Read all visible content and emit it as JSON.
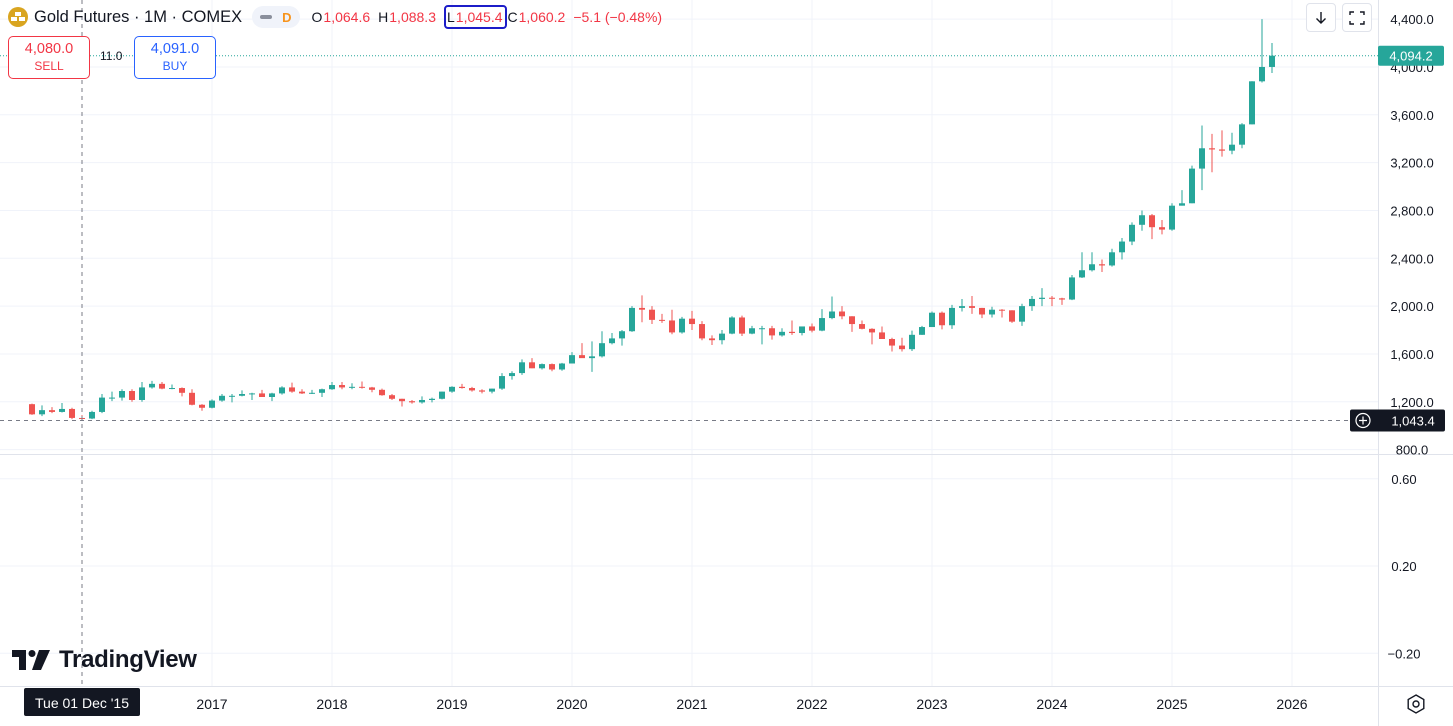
{
  "header": {
    "symbol": "Gold Futures · 1M · COMEX",
    "session_badge": "D",
    "open_key": "O",
    "open_value": "1,064.6",
    "high_key": "H",
    "high_value": "1,088.3",
    "low_key": "L",
    "low_value": "1,045.4",
    "close_key": "C",
    "close_value": "1,060.2",
    "change": "−5.1 (−0.48%)"
  },
  "trade": {
    "sell_price": "4,080.0",
    "sell_label": "SELL",
    "spread": "11.0",
    "buy_price": "4,091.0",
    "buy_label": "BUY"
  },
  "toolbar": {
    "download_icon": "down-arrow-icon",
    "fullscreen_icon": "fullscreen-icon",
    "settings_icon": "settings-icon"
  },
  "brand": {
    "name": "TradingView"
  },
  "colors": {
    "up": "#26a69a",
    "down": "#ef5350",
    "accent": "#2962ff",
    "crosshair": "#131722",
    "last_price_bg": "#26a69a"
  },
  "chart_data": [
    {
      "type": "candlestick",
      "title": "Gold Futures · 1M · COMEX",
      "interval": "1M",
      "ylim": [
        780,
        4560
      ],
      "price_ticks": [
        "800.0",
        "1,200.0",
        "1,600.0",
        "2,000.0",
        "2,400.0",
        "2,800.0",
        "3,200.0",
        "3,600.0",
        "4,000.0",
        "4,400.0"
      ],
      "price_tick_values": [
        800,
        1200,
        1600,
        2000,
        2400,
        2800,
        3200,
        3600,
        4000,
        4400
      ],
      "time_ticks": [
        "2017",
        "2018",
        "2019",
        "2020",
        "2021",
        "2022",
        "2023",
        "2024",
        "2025",
        "2026"
      ],
      "last_price": "4,094.2",
      "crosshair_price": "1,043.4",
      "crosshair_date": "Tue 01 Dec '15",
      "grid": true,
      "candles": [
        [
          "2015-07",
          1180,
          1185,
          1090,
          1095
        ],
        [
          "2015-08",
          1095,
          1170,
          1080,
          1130
        ],
        [
          "2015-09",
          1130,
          1155,
          1105,
          1115
        ],
        [
          "2015-10",
          1115,
          1190,
          1110,
          1140
        ],
        [
          "2015-11",
          1140,
          1150,
          1055,
          1065
        ],
        [
          "2015-12",
          1064.6,
          1088.3,
          1045.4,
          1060.2
        ],
        [
          "2016-01",
          1060,
          1125,
          1055,
          1115
        ],
        [
          "2016-02",
          1115,
          1265,
          1105,
          1235
        ],
        [
          "2016-03",
          1235,
          1285,
          1205,
          1235
        ],
        [
          "2016-04",
          1235,
          1305,
          1210,
          1290
        ],
        [
          "2016-05",
          1290,
          1305,
          1200,
          1215
        ],
        [
          "2016-06",
          1215,
          1365,
          1200,
          1320
        ],
        [
          "2016-07",
          1320,
          1375,
          1310,
          1350
        ],
        [
          "2016-08",
          1350,
          1365,
          1305,
          1310
        ],
        [
          "2016-09",
          1310,
          1345,
          1305,
          1315
        ],
        [
          "2016-10",
          1315,
          1320,
          1245,
          1275
        ],
        [
          "2016-11",
          1275,
          1305,
          1170,
          1175
        ],
        [
          "2016-12",
          1175,
          1180,
          1125,
          1150
        ],
        [
          "2017-01",
          1150,
          1220,
          1145,
          1210
        ],
        [
          "2017-02",
          1210,
          1265,
          1200,
          1250
        ],
        [
          "2017-03",
          1250,
          1265,
          1195,
          1250
        ],
        [
          "2017-04",
          1250,
          1295,
          1245,
          1265
        ],
        [
          "2017-05",
          1265,
          1275,
          1215,
          1270
        ],
        [
          "2017-06",
          1270,
          1300,
          1240,
          1240
        ],
        [
          "2017-07",
          1240,
          1275,
          1205,
          1270
        ],
        [
          "2017-08",
          1270,
          1330,
          1260,
          1320
        ],
        [
          "2017-09",
          1320,
          1360,
          1275,
          1285
        ],
        [
          "2017-10",
          1285,
          1305,
          1265,
          1270
        ],
        [
          "2017-11",
          1270,
          1300,
          1265,
          1275
        ],
        [
          "2017-12",
          1275,
          1310,
          1240,
          1305
        ],
        [
          "2018-01",
          1305,
          1365,
          1300,
          1340
        ],
        [
          "2018-02",
          1340,
          1365,
          1305,
          1320
        ],
        [
          "2018-03",
          1320,
          1355,
          1305,
          1325
        ],
        [
          "2018-04",
          1325,
          1370,
          1310,
          1320
        ],
        [
          "2018-05",
          1320,
          1325,
          1280,
          1300
        ],
        [
          "2018-06",
          1300,
          1310,
          1250,
          1255
        ],
        [
          "2018-07",
          1255,
          1265,
          1215,
          1225
        ],
        [
          "2018-08",
          1225,
          1225,
          1160,
          1205
        ],
        [
          "2018-09",
          1205,
          1215,
          1185,
          1195
        ],
        [
          "2018-10",
          1195,
          1245,
          1185,
          1215
        ],
        [
          "2018-11",
          1215,
          1235,
          1195,
          1225
        ],
        [
          "2018-12",
          1225,
          1285,
          1220,
          1285
        ],
        [
          "2019-01",
          1285,
          1330,
          1275,
          1325
        ],
        [
          "2019-02",
          1325,
          1350,
          1310,
          1315
        ],
        [
          "2019-03",
          1315,
          1325,
          1285,
          1295
        ],
        [
          "2019-04",
          1295,
          1305,
          1270,
          1285
        ],
        [
          "2019-05",
          1285,
          1310,
          1270,
          1310
        ],
        [
          "2019-06",
          1310,
          1440,
          1300,
          1415
        ],
        [
          "2019-07",
          1415,
          1455,
          1385,
          1440
        ],
        [
          "2019-08",
          1440,
          1555,
          1425,
          1530
        ],
        [
          "2019-09",
          1530,
          1565,
          1480,
          1480
        ],
        [
          "2019-10",
          1480,
          1520,
          1470,
          1515
        ],
        [
          "2019-11",
          1515,
          1520,
          1455,
          1470
        ],
        [
          "2019-12",
          1470,
          1525,
          1460,
          1520
        ],
        [
          "2020-01",
          1520,
          1615,
          1520,
          1590
        ],
        [
          "2020-02",
          1590,
          1690,
          1570,
          1565
        ],
        [
          "2020-03",
          1565,
          1705,
          1450,
          1580
        ],
        [
          "2020-04",
          1580,
          1790,
          1570,
          1690
        ],
        [
          "2020-05",
          1690,
          1775,
          1680,
          1730
        ],
        [
          "2020-06",
          1730,
          1800,
          1670,
          1790
        ],
        [
          "2020-07",
          1790,
          2000,
          1785,
          1985
        ],
        [
          "2020-08",
          1985,
          2090,
          1865,
          1970
        ],
        [
          "2020-09",
          1970,
          2000,
          1850,
          1885
        ],
        [
          "2020-10",
          1885,
          1935,
          1860,
          1880
        ],
        [
          "2020-11",
          1880,
          1970,
          1765,
          1780
        ],
        [
          "2020-12",
          1780,
          1910,
          1770,
          1895
        ],
        [
          "2021-01",
          1895,
          1960,
          1800,
          1850
        ],
        [
          "2021-02",
          1850,
          1875,
          1715,
          1730
        ],
        [
          "2021-03",
          1730,
          1755,
          1675,
          1715
        ],
        [
          "2021-04",
          1715,
          1800,
          1680,
          1770
        ],
        [
          "2021-05",
          1770,
          1915,
          1765,
          1905
        ],
        [
          "2021-06",
          1905,
          1920,
          1750,
          1770
        ],
        [
          "2021-07",
          1770,
          1835,
          1765,
          1815
        ],
        [
          "2021-08",
          1815,
          1835,
          1680,
          1815
        ],
        [
          "2021-09",
          1815,
          1835,
          1720,
          1755
        ],
        [
          "2021-10",
          1755,
          1815,
          1745,
          1785
        ],
        [
          "2021-11",
          1785,
          1880,
          1760,
          1775
        ],
        [
          "2021-12",
          1775,
          1830,
          1755,
          1830
        ],
        [
          "2022-01",
          1830,
          1855,
          1780,
          1795
        ],
        [
          "2022-02",
          1795,
          1975,
          1790,
          1900
        ],
        [
          "2022-03",
          1900,
          2080,
          1890,
          1955
        ],
        [
          "2022-04",
          1955,
          2000,
          1890,
          1915
        ],
        [
          "2022-05",
          1915,
          1915,
          1785,
          1850
        ],
        [
          "2022-06",
          1850,
          1880,
          1805,
          1810
        ],
        [
          "2022-07",
          1810,
          1815,
          1680,
          1780
        ],
        [
          "2022-08",
          1780,
          1830,
          1725,
          1725
        ],
        [
          "2022-09",
          1725,
          1735,
          1620,
          1670
        ],
        [
          "2022-10",
          1670,
          1735,
          1620,
          1640
        ],
        [
          "2022-11",
          1640,
          1795,
          1625,
          1760
        ],
        [
          "2022-12",
          1760,
          1835,
          1760,
          1825
        ],
        [
          "2023-01",
          1825,
          1955,
          1825,
          1945
        ],
        [
          "2023-02",
          1945,
          1955,
          1805,
          1840
        ],
        [
          "2023-03",
          1840,
          2010,
          1810,
          1985
        ],
        [
          "2023-04",
          1985,
          2060,
          1955,
          2000
        ],
        [
          "2023-05",
          2000,
          2085,
          1935,
          1985
        ],
        [
          "2023-06",
          1985,
          1985,
          1900,
          1930
        ],
        [
          "2023-07",
          1930,
          1995,
          1905,
          1970
        ],
        [
          "2023-08",
          1970,
          1975,
          1905,
          1965
        ],
        [
          "2023-09",
          1965,
          1965,
          1860,
          1870
        ],
        [
          "2023-10",
          1870,
          2020,
          1835,
          2000
        ],
        [
          "2023-11",
          2000,
          2085,
          1960,
          2060
        ],
        [
          "2023-12",
          2060,
          2150,
          2000,
          2070
        ],
        [
          "2024-01",
          2070,
          2085,
          2000,
          2065
        ],
        [
          "2024-02",
          2065,
          2070,
          2010,
          2055
        ],
        [
          "2024-03",
          2055,
          2260,
          2050,
          2240
        ],
        [
          "2024-04",
          2240,
          2450,
          2235,
          2300
        ],
        [
          "2024-05",
          2300,
          2450,
          2290,
          2350
        ],
        [
          "2024-06",
          2350,
          2390,
          2285,
          2340
        ],
        [
          "2024-07",
          2340,
          2480,
          2330,
          2450
        ],
        [
          "2024-08",
          2450,
          2570,
          2390,
          2540
        ],
        [
          "2024-09",
          2540,
          2700,
          2510,
          2680
        ],
        [
          "2024-10",
          2680,
          2800,
          2630,
          2760
        ],
        [
          "2024-11",
          2760,
          2770,
          2560,
          2660
        ],
        [
          "2024-12",
          2660,
          2720,
          2600,
          2640
        ],
        [
          "2025-01",
          2640,
          2860,
          2630,
          2840
        ],
        [
          "2025-02",
          2840,
          2970,
          2840,
          2860
        ],
        [
          "2025-03",
          2860,
          3175,
          2860,
          3150
        ],
        [
          "2025-04",
          3150,
          3510,
          2970,
          3320
        ],
        [
          "2025-05",
          3320,
          3440,
          3120,
          3310
        ],
        [
          "2025-06",
          3310,
          3470,
          3250,
          3300
        ],
        [
          "2025-07",
          3300,
          3450,
          3270,
          3350
        ],
        [
          "2025-08",
          3350,
          3530,
          3320,
          3520
        ],
        [
          "2025-09",
          3520,
          3880,
          3520,
          3880
        ],
        [
          "2025-10",
          3880,
          4400,
          3870,
          4000
        ],
        [
          "2025-11",
          4000,
          4200,
          3950,
          4094.2
        ]
      ]
    },
    {
      "type": "line",
      "title": "",
      "ylim": [
        -0.35,
        0.7
      ],
      "y_ticks": [
        "0.60",
        "0.20",
        "−0.20"
      ],
      "y_tick_values": [
        0.6,
        0.2,
        -0.2
      ]
    }
  ]
}
